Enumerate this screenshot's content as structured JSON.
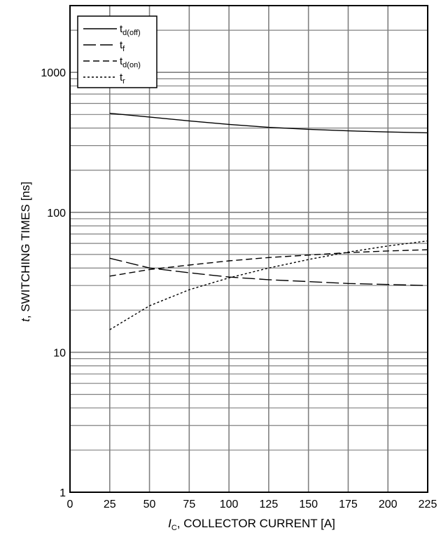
{
  "chart_data": {
    "type": "line",
    "title": "",
    "xlabel": {
      "italic": "I",
      "sub": "C",
      "rest": ", COLLECTOR CURRENT [A]"
    },
    "ylabel": {
      "italic": "t",
      "rest": ", SWITCHING TIMES [ns]"
    },
    "x_scale": "linear",
    "y_scale": "log",
    "xlim": [
      0,
      225
    ],
    "ylim": [
      1,
      3000
    ],
    "x_ticks": [
      0,
      25,
      50,
      75,
      100,
      125,
      150,
      175,
      200,
      225
    ],
    "x_tick_labels": [
      "0",
      "25",
      "50",
      "75",
      "100",
      "125",
      "150",
      "175",
      "200",
      "225"
    ],
    "y_ticks": [
      1,
      10,
      100,
      1000
    ],
    "y_tick_labels": [
      "1",
      "10",
      "100",
      "1000"
    ],
    "grid": true,
    "legend_position": "top-left",
    "series": [
      {
        "name": {
          "base": "t",
          "sub": "d(off)"
        },
        "dash": "solid",
        "x": [
          25,
          50,
          75,
          100,
          125,
          150,
          175,
          200,
          225
        ],
        "y": [
          510,
          480,
          450,
          425,
          405,
          392,
          382,
          375,
          370
        ]
      },
      {
        "name": {
          "base": "t",
          "sub": "f"
        },
        "dash": "longdash",
        "x": [
          25,
          50,
          75,
          100,
          125,
          150,
          175,
          200,
          225
        ],
        "y": [
          47,
          40,
          37,
          34.5,
          33,
          32,
          31,
          30.5,
          30
        ]
      },
      {
        "name": {
          "base": "t",
          "sub": "d(on)"
        },
        "dash": "dash",
        "x": [
          25,
          50,
          75,
          100,
          125,
          150,
          175,
          200,
          225
        ],
        "y": [
          35,
          39,
          42,
          45,
          47.5,
          49.5,
          51.5,
          53,
          54
        ]
      },
      {
        "name": {
          "base": "t",
          "sub": "r"
        },
        "dash": "dot",
        "x": [
          25,
          50,
          75,
          100,
          125,
          150,
          175,
          200,
          225
        ],
        "y": [
          14.5,
          21.5,
          28,
          34,
          40,
          46,
          52,
          57.5,
          62.5
        ]
      }
    ]
  }
}
